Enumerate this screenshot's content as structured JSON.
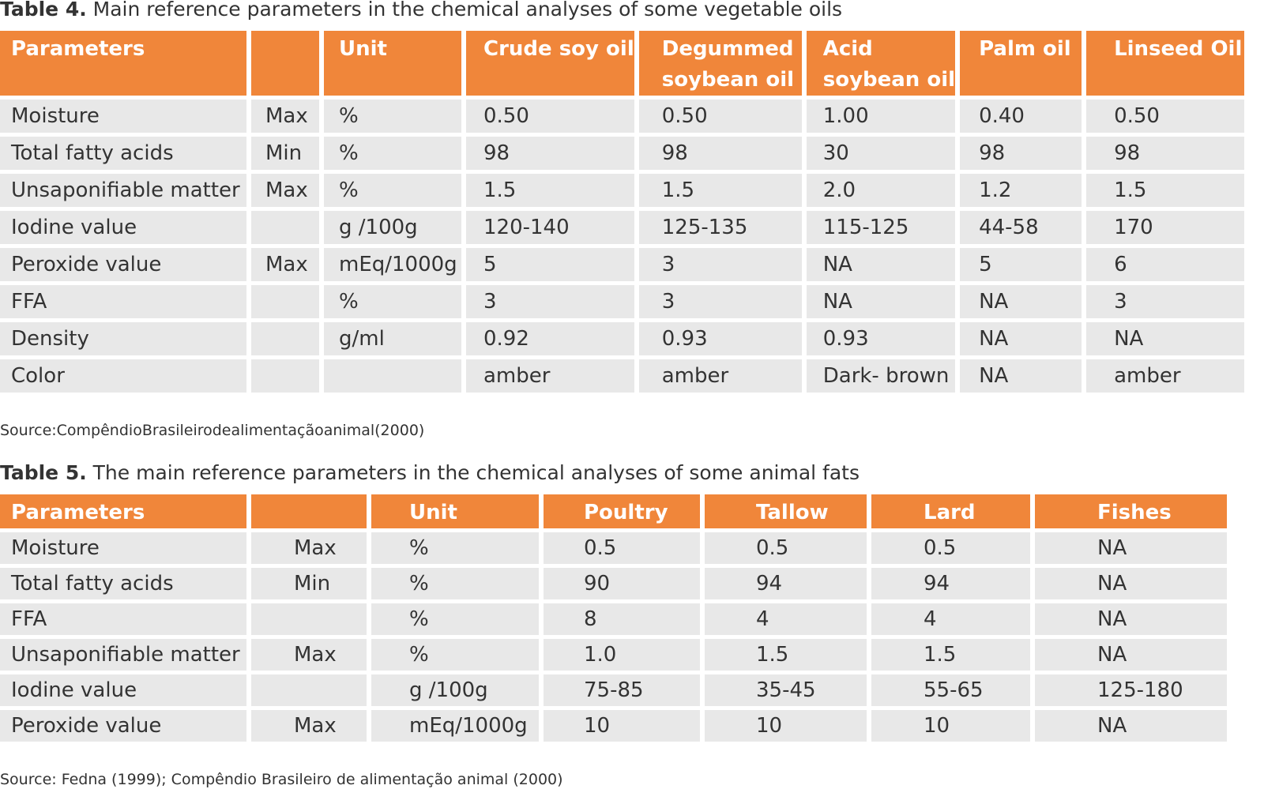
{
  "table4": {
    "caption_label": "Table 4.",
    "caption_text": " Main reference parameters in the chemical analyses of some vegetable oils",
    "headers": [
      "Parameters",
      "",
      "Unit",
      "Crude soy oil",
      "Degummed\nsoybean oil",
      "Acid\nsoybean oil",
      "Palm oil",
      "Linseed Oil"
    ],
    "rows": [
      [
        "Moisture",
        "Max",
        "%",
        "0.50",
        "0.50",
        "1.00",
        "0.40",
        "0.50"
      ],
      [
        "Total fatty acids",
        "Min",
        "%",
        "98",
        "98",
        "30",
        "98",
        "98"
      ],
      [
        "Unsaponifiable matter",
        "Max",
        "%",
        "1.5",
        "1.5",
        "2.0",
        "1.2",
        "1.5"
      ],
      [
        "Iodine value",
        "",
        "g /100g",
        "120-140",
        "125-135",
        "115-125",
        "44-58",
        "170"
      ],
      [
        "Peroxide value",
        "Max",
        "mEq/1000g",
        "5",
        "3",
        "NA",
        "5",
        "6"
      ],
      [
        "FFA",
        "",
        "%",
        "3",
        "3",
        "NA",
        "NA",
        "3"
      ],
      [
        "Density",
        "",
        "g/ml",
        "0.92",
        "0.93",
        "0.93",
        "NA",
        "NA"
      ],
      [
        "Color",
        "",
        "",
        "amber",
        "amber",
        "Dark- brown",
        "NA",
        "amber"
      ]
    ],
    "source": "Source:CompêndioBrasileirodealimentaçãoanimal(2000)"
  },
  "table5": {
    "caption_label": "Table 5.",
    "caption_text": " The main reference parameters in the chemical analyses of some animal fats",
    "headers": [
      "Parameters",
      "",
      "Unit",
      "Poultry",
      "Tallow",
      "Lard",
      "Fishes"
    ],
    "rows": [
      [
        "Moisture",
        "Max",
        "%",
        "0.5",
        "0.5",
        "0.5",
        "NA"
      ],
      [
        "Total fatty acids",
        "Min",
        "%",
        "90",
        "94",
        "94",
        "NA"
      ],
      [
        "FFA",
        "",
        "%",
        "8",
        "4",
        "4",
        "NA"
      ],
      [
        "Unsaponifiable matter",
        "Max",
        "%",
        "1.0",
        "1.5",
        "1.5",
        "NA"
      ],
      [
        "Iodine value",
        "",
        "g /100g",
        "75-85",
        "35-45",
        "55-65",
        "125-180"
      ],
      [
        "Peroxide value",
        "Max",
        "mEq/1000g",
        "10",
        "10",
        "10",
        "NA"
      ]
    ],
    "source": "Source: Fedna (1999); Compêndio Brasileiro de alimentação animal (2000)"
  },
  "colors": {
    "header_bg": "#f0863a",
    "cell_bg": "#e8e8e8",
    "text": "#333333"
  }
}
